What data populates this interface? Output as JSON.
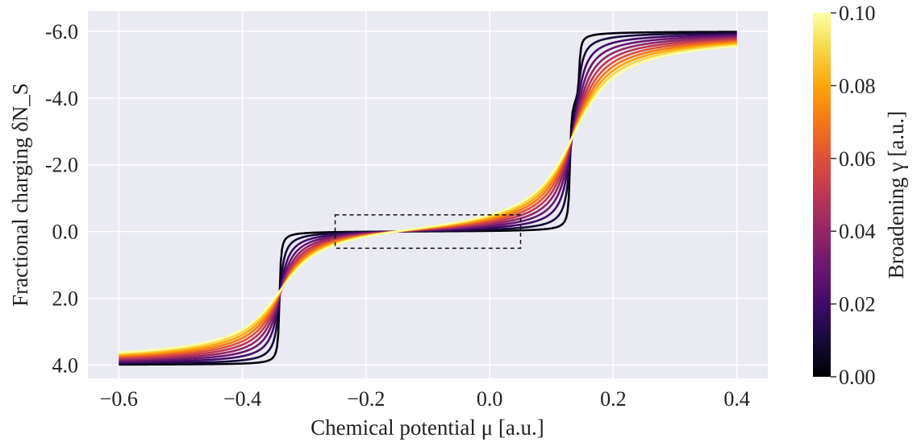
{
  "chart_data": {
    "type": "line",
    "title": "",
    "xlabel": "Chemical potential μ [a.u.]",
    "ylabel": "Fractional charging δN_S",
    "xlim": [
      -0.65,
      0.45
    ],
    "ylim": [
      4.4,
      -6.6
    ],
    "y_inverted": true,
    "x_ticks": [
      -0.6,
      -0.4,
      -0.2,
      0.0,
      0.2,
      0.4
    ],
    "x_tick_labels": [
      "−0.6",
      "−0.4",
      "−0.2",
      "0.0",
      "0.2",
      "0.4"
    ],
    "y_ticks": [
      -6,
      -4,
      -2,
      0,
      2,
      4
    ],
    "y_tick_labels": [
      "-6.0",
      "-4.0",
      "-2.0",
      "0.0",
      "2.0",
      "4.0"
    ],
    "grid": true,
    "plot_background": "#eaeaf2",
    "steps": [
      {
        "center": -0.34,
        "from": 4.0,
        "to": 0.0
      },
      {
        "center": 0.13,
        "from": 0.0,
        "to": -4.0
      },
      {
        "center": 0.145,
        "from": -4.0,
        "to": -6.0
      }
    ],
    "x_range": [
      -0.6,
      0.4
    ],
    "series_gamma": [
      0.002,
      0.01,
      0.02,
      0.03,
      0.04,
      0.05,
      0.06,
      0.07,
      0.08,
      0.09,
      0.1
    ],
    "annotation_box": {
      "x": [
        -0.25,
        0.05
      ],
      "y": [
        -0.5,
        0.5
      ],
      "style": "dashed"
    },
    "colorbar": {
      "label": "Broadening γ [a.u.]",
      "colormap": "inferno",
      "range": [
        0.0,
        0.1
      ],
      "ticks": [
        0.0,
        0.02,
        0.04,
        0.06,
        0.08,
        0.1
      ],
      "tick_labels": [
        "0.00",
        "0.02",
        "0.04",
        "0.06",
        "0.08",
        "0.10"
      ]
    }
  }
}
